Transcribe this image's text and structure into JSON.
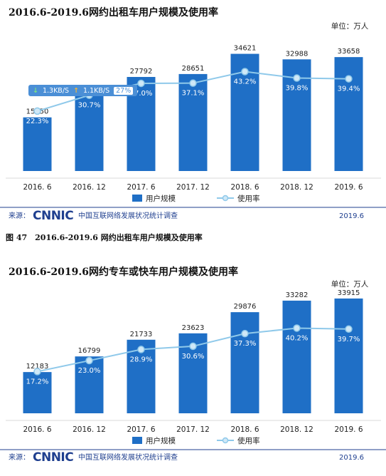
{
  "charts": [
    {
      "title": "2016.6-2019.6网约出租车用户规模及使用率",
      "unit": "单位：万人",
      "legend": {
        "bar": "用户规模",
        "line": "使用率"
      },
      "source": {
        "prefix": "来源：",
        "logo": "CNNIC",
        "org": "中国互联网络发展状况统计调查",
        "date": "2019.6"
      }
    },
    {
      "title": "2016.6-2019.6网约专车或快车用户规模及使用率",
      "unit": "单位：万人",
      "legend": {
        "bar": "用户规模",
        "line": "使用率"
      },
      "source": {
        "prefix": "来源：",
        "logo": "CNNIC",
        "org": "中国互联网络发展状况统计调查",
        "date": "2019.6"
      }
    }
  ],
  "caption": "图 47　2016.6-2019.6 网约出租车用户规模及使用率",
  "overlay": {
    "down": "↓",
    "down_speed": "1.3KB/S",
    "up": "↑",
    "up_speed": "1.1KB/S",
    "percent": "27%"
  },
  "colors": {
    "bar": "#1f6fc6",
    "line": "#8fc9ea",
    "marker": "#cfe8f7"
  },
  "chart_data": [
    {
      "type": "bar",
      "title": "2016.6-2019.6网约出租车用户规模及使用率",
      "categories": [
        "2016. 6",
        "2016. 12",
        "2017. 6",
        "2017. 12",
        "2018. 6",
        "2018. 12",
        "2019. 6"
      ],
      "series": [
        {
          "name": "用户规模",
          "type": "bar",
          "values": [
            15850,
            22463,
            27792,
            28651,
            34621,
            32988,
            33658
          ]
        },
        {
          "name": "使用率",
          "type": "line",
          "values": [
            22.3,
            30.7,
            37.0,
            37.1,
            43.2,
            39.8,
            39.4
          ],
          "labels": [
            "22.3%",
            "30.7%",
            "37.0%",
            "37.1%",
            "43.2%",
            "39.8%",
            "39.4%"
          ]
        }
      ],
      "ylim": [
        0,
        40000
      ],
      "rate_ylim": [
        0,
        100
      ],
      "grid": false,
      "legend": "bottom-center"
    },
    {
      "type": "bar",
      "title": "2016.6-2019.6网约专车或快车用户规模及使用率",
      "categories": [
        "2016. 6",
        "2016. 12",
        "2017. 6",
        "2017. 12",
        "2018. 6",
        "2018. 12",
        "2019. 6"
      ],
      "series": [
        {
          "name": "用户规模",
          "type": "bar",
          "values": [
            12183,
            16799,
            21733,
            23623,
            29876,
            33282,
            33915
          ]
        },
        {
          "name": "使用率",
          "type": "line",
          "values": [
            17.2,
            23.0,
            28.9,
            30.6,
            37.3,
            40.2,
            39.7
          ],
          "labels": [
            "17.2%",
            "23.0%",
            "28.9%",
            "30.6%",
            "37.3%",
            "40.2%",
            "39.7%"
          ]
        }
      ],
      "ylim": [
        0,
        40000
      ],
      "rate_ylim": [
        0,
        100
      ],
      "grid": false,
      "legend": "bottom-center"
    }
  ]
}
